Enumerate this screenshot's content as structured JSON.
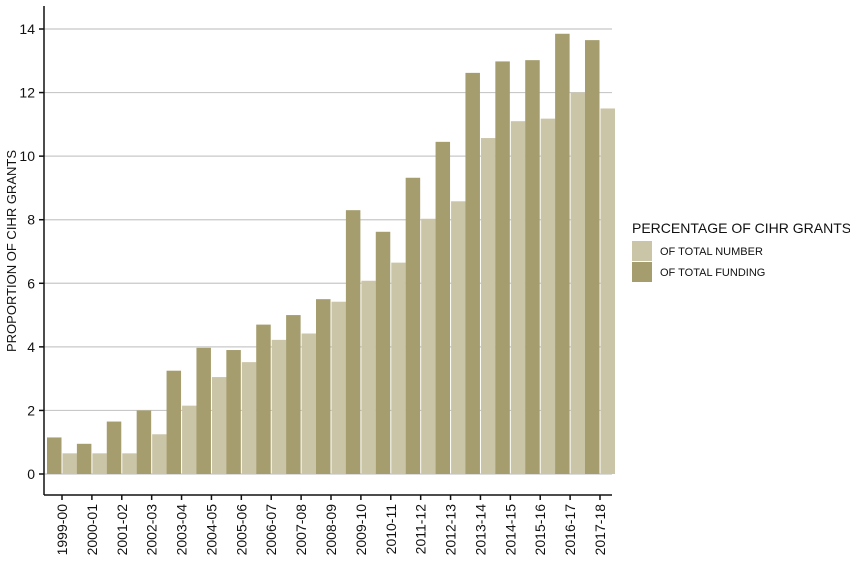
{
  "chart_data": {
    "type": "bar",
    "title": "",
    "xlabel": "",
    "ylabel": "PROPORTION OF CIHR GRANTS",
    "ylim": [
      0,
      14
    ],
    "yticks": [
      0,
      2,
      4,
      6,
      8,
      10,
      12,
      14
    ],
    "grid": true,
    "legend": {
      "title": "PERCENTAGE OF CIHR GRANTS",
      "placement": "right"
    },
    "categories": [
      "1999-00",
      "2000-01",
      "2001-02",
      "2002-03",
      "2003-04",
      "2004-05",
      "2005-06",
      "2006-07",
      "2007-08",
      "2008-09",
      "2009-10",
      "2010-11",
      "2011-12",
      "2012-13",
      "2013-14",
      "2014-15",
      "2015-16",
      "2016-17",
      "2017-18"
    ],
    "series": [
      {
        "name": "OF TOTAL FUNDING",
        "color": "#a59d6d",
        "values": [
          1.15,
          0.95,
          1.65,
          2.0,
          3.25,
          3.97,
          3.9,
          4.7,
          5.0,
          5.5,
          8.3,
          7.62,
          9.32,
          10.45,
          12.62,
          12.98,
          13.02,
          13.85,
          13.65
        ]
      },
      {
        "name": "OF TOTAL NUMBER",
        "color": "#cbc5a8",
        "values": [
          0.65,
          0.65,
          0.65,
          1.25,
          2.15,
          3.05,
          3.52,
          4.22,
          4.42,
          5.42,
          6.08,
          6.65,
          8.03,
          8.58,
          10.57,
          11.1,
          11.18,
          12.0,
          11.5
        ]
      }
    ],
    "legend_order": [
      "OF TOTAL NUMBER",
      "OF TOTAL FUNDING"
    ]
  }
}
